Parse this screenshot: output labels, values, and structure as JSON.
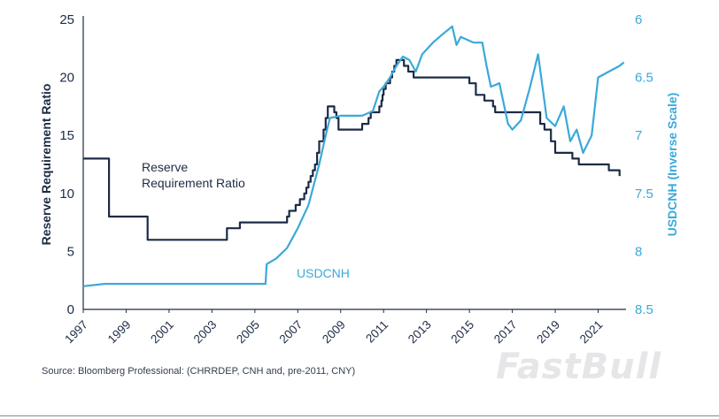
{
  "colors": {
    "rrr": "#1c2b45",
    "usdcnh": "#3aa9d9",
    "axis": "#1c2b45"
  },
  "source_text": "Source: Bloomberg Professional: (CHRRDEP, CNH and, pre-2011, CNY)",
  "watermark": "FastBull",
  "chart_data": {
    "type": "line",
    "title": "",
    "x_label": "",
    "left_axis": {
      "label": "Reserve Requirement Ratio",
      "range": [
        0,
        25
      ],
      "ticks": [
        "0",
        "5",
        "10",
        "15",
        "20",
        "25"
      ],
      "tick_values": [
        0,
        5,
        10,
        15,
        20,
        25
      ]
    },
    "right_axis": {
      "label": "USDCNH (Inverse Scale)",
      "range_top": 6,
      "range_bottom": 8.5,
      "inverse": true,
      "ticks": [
        "6",
        "6.5",
        "7",
        "7.5",
        "8",
        "8.5"
      ],
      "tick_values": [
        6,
        6.5,
        7,
        7.5,
        8,
        8.5
      ]
    },
    "x_axis": {
      "range": [
        1997,
        2022.3
      ],
      "ticks": [
        "1997",
        "1999",
        "2001",
        "2003",
        "2005",
        "2007",
        "2009",
        "2011",
        "2013",
        "2015",
        "2017",
        "2019",
        "2021"
      ],
      "tick_values": [
        1997,
        1999,
        2001,
        2003,
        2005,
        2007,
        2009,
        2011,
        2013,
        2015,
        2017,
        2019,
        2021
      ]
    },
    "annotations": {
      "rrr_line1": "Reserve",
      "rrr_line2": "Requirement Ratio",
      "usdcnh": "USDCNH"
    },
    "series": [
      {
        "name": "Reserve Requirement Ratio",
        "axis": "left",
        "step": true,
        "points": [
          [
            1997.0,
            13.0
          ],
          [
            1998.2,
            8.0
          ],
          [
            2000.0,
            6.0
          ],
          [
            2003.7,
            7.0
          ],
          [
            2004.3,
            7.5
          ],
          [
            2006.5,
            8.0
          ],
          [
            2006.6,
            8.5
          ],
          [
            2006.9,
            9.0
          ],
          [
            2007.1,
            9.5
          ],
          [
            2007.3,
            10.0
          ],
          [
            2007.4,
            10.5
          ],
          [
            2007.5,
            11.0
          ],
          [
            2007.6,
            11.5
          ],
          [
            2007.7,
            12.0
          ],
          [
            2007.8,
            12.5
          ],
          [
            2007.9,
            13.5
          ],
          [
            2008.0,
            14.5
          ],
          [
            2008.2,
            15.5
          ],
          [
            2008.3,
            16.5
          ],
          [
            2008.4,
            17.5
          ],
          [
            2008.7,
            17.0
          ],
          [
            2008.8,
            16.5
          ],
          [
            2008.9,
            15.5
          ],
          [
            2010.0,
            16.0
          ],
          [
            2010.3,
            16.5
          ],
          [
            2010.4,
            17.0
          ],
          [
            2010.8,
            17.5
          ],
          [
            2010.9,
            18.0
          ],
          [
            2010.95,
            18.5
          ],
          [
            2011.0,
            19.0
          ],
          [
            2011.1,
            19.5
          ],
          [
            2011.3,
            20.0
          ],
          [
            2011.4,
            20.5
          ],
          [
            2011.5,
            21.0
          ],
          [
            2011.6,
            21.5
          ],
          [
            2011.95,
            21.0
          ],
          [
            2012.15,
            20.5
          ],
          [
            2012.4,
            20.0
          ],
          [
            2015.0,
            19.5
          ],
          [
            2015.3,
            18.5
          ],
          [
            2015.7,
            18.0
          ],
          [
            2016.1,
            17.5
          ],
          [
            2016.2,
            17.0
          ],
          [
            2018.3,
            16.0
          ],
          [
            2018.5,
            15.5
          ],
          [
            2018.8,
            14.5
          ],
          [
            2019.0,
            13.5
          ],
          [
            2019.8,
            13.0
          ],
          [
            2020.1,
            12.5
          ],
          [
            2021.5,
            12.0
          ],
          [
            2022.0,
            11.5
          ],
          [
            2022.0,
            11.5
          ]
        ]
      },
      {
        "name": "USDCNH",
        "axis": "right",
        "step": false,
        "points": [
          [
            1997.0,
            8.3
          ],
          [
            1998.0,
            8.28
          ],
          [
            2000.0,
            8.28
          ],
          [
            2002.0,
            8.28
          ],
          [
            2004.0,
            8.28
          ],
          [
            2005.5,
            8.28
          ],
          [
            2005.55,
            8.11
          ],
          [
            2006.0,
            8.06
          ],
          [
            2006.5,
            7.97
          ],
          [
            2007.0,
            7.8
          ],
          [
            2007.5,
            7.6
          ],
          [
            2008.0,
            7.25
          ],
          [
            2008.3,
            7.0
          ],
          [
            2008.5,
            6.85
          ],
          [
            2009.0,
            6.83
          ],
          [
            2010.0,
            6.83
          ],
          [
            2010.5,
            6.79
          ],
          [
            2010.8,
            6.62
          ],
          [
            2011.0,
            6.58
          ],
          [
            2011.3,
            6.5
          ],
          [
            2011.6,
            6.4
          ],
          [
            2011.9,
            6.32
          ],
          [
            2012.2,
            6.35
          ],
          [
            2012.5,
            6.45
          ],
          [
            2012.8,
            6.3
          ],
          [
            2013.3,
            6.2
          ],
          [
            2013.8,
            6.12
          ],
          [
            2014.2,
            6.06
          ],
          [
            2014.4,
            6.22
          ],
          [
            2014.6,
            6.15
          ],
          [
            2015.2,
            6.2
          ],
          [
            2015.6,
            6.2
          ],
          [
            2015.8,
            6.4
          ],
          [
            2016.0,
            6.58
          ],
          [
            2016.4,
            6.55
          ],
          [
            2016.8,
            6.9
          ],
          [
            2017.0,
            6.95
          ],
          [
            2017.4,
            6.87
          ],
          [
            2017.8,
            6.6
          ],
          [
            2018.2,
            6.3
          ],
          [
            2018.6,
            6.85
          ],
          [
            2019.0,
            6.92
          ],
          [
            2019.4,
            6.75
          ],
          [
            2019.7,
            7.05
          ],
          [
            2020.0,
            6.95
          ],
          [
            2020.3,
            7.15
          ],
          [
            2020.7,
            7.0
          ],
          [
            2021.0,
            6.5
          ],
          [
            2021.5,
            6.45
          ],
          [
            2022.0,
            6.4
          ],
          [
            2022.2,
            6.37
          ]
        ]
      }
    ]
  }
}
